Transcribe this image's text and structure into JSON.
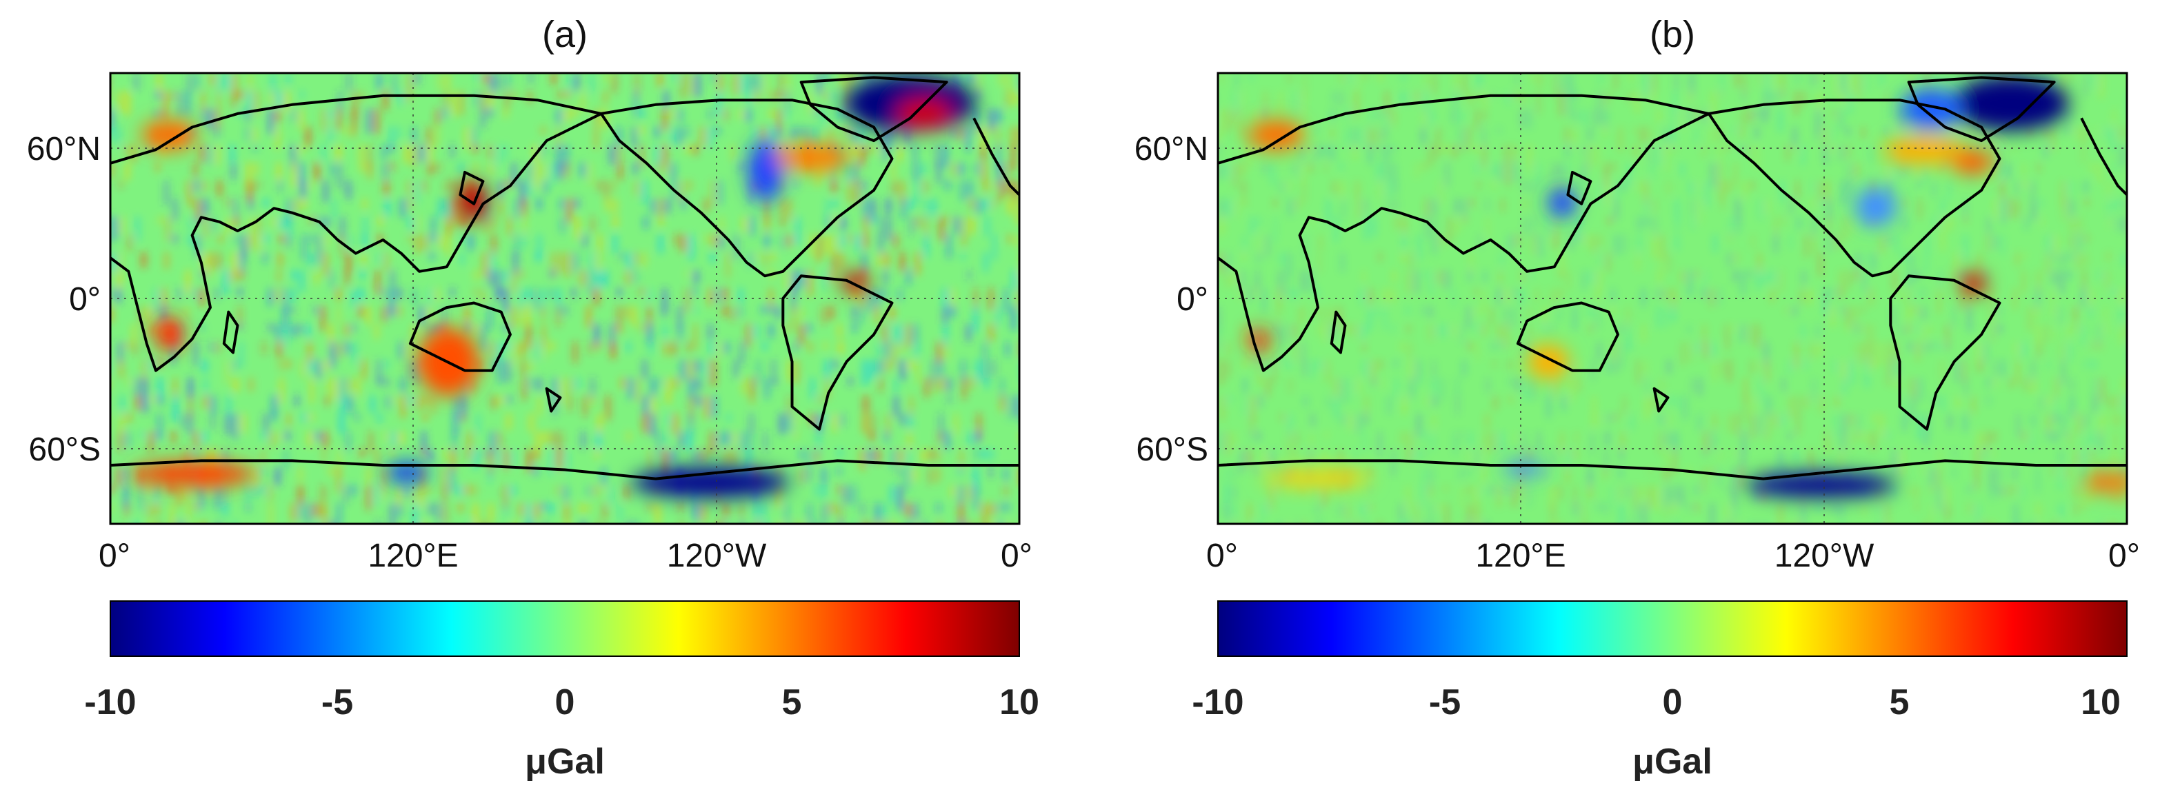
{
  "panels": [
    {
      "title": "(a)",
      "lat_labels": [
        "60°N",
        "0°",
        "60°S"
      ],
      "lon_labels": [
        "0°",
        "120°E",
        "120°W",
        "0°"
      ],
      "colorbar": {
        "ticks": [
          "-10",
          "-5",
          "0",
          "5",
          "10"
        ],
        "unit": "μGal"
      }
    },
    {
      "title": "(b)",
      "lat_labels": [
        "60°N",
        "0°",
        "60°S"
      ],
      "lon_labels": [
        "0°",
        "120°E",
        "120°W",
        "0°"
      ],
      "colorbar": {
        "ticks": [
          "-10",
          "-5",
          "0",
          "5",
          "10"
        ],
        "unit": "μGal"
      }
    }
  ],
  "colormap": {
    "name": "jet",
    "range": [
      -10,
      10
    ],
    "stops": [
      "#00007f",
      "#0000ff",
      "#007fff",
      "#00ffff",
      "#7fff7f",
      "#ffff00",
      "#ff7f00",
      "#ff0000",
      "#7f0000"
    ]
  },
  "map": {
    "projection": "plate carree",
    "lon_range": [
      0,
      360
    ],
    "lat_range": [
      -90,
      90
    ],
    "gridlines": "dotted",
    "grid_lats": [
      60,
      0,
      -60
    ],
    "grid_lons": [
      120,
      240
    ]
  }
}
